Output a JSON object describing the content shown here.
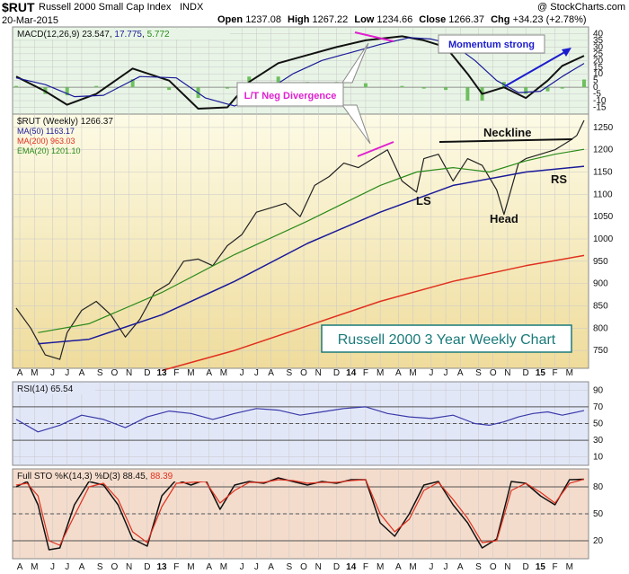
{
  "header": {
    "symbol": "$RUT",
    "name": "Russell 2000 Small Cap Index",
    "exchange": "INDX",
    "date": "20-Mar-2015",
    "credit": "@ StockCharts.com",
    "open_label": "Open",
    "open": "1237.08",
    "high_label": "High",
    "high": "1267.22",
    "low_label": "Low",
    "low": "1234.66",
    "close_label": "Close",
    "close": "1266.37",
    "chg_label": "Chg",
    "chg": "+34.23 (+2.78%)"
  },
  "colors": {
    "macd_bg": "#e8f5e6",
    "price_bg_top": "#fdfbe6",
    "price_bg_bottom": "#efdc9c",
    "rsi_bg": "#e2e7f8",
    "sto_bg": "#f4dccc",
    "grid": "#c8c8c8",
    "ma50": "#1a1a99",
    "ma200": "#e0301e",
    "ema20": "#2a8a1a",
    "hist": "#6fbf5f",
    "pink": "#e020d0",
    "blue_annot": "#1c1ccf",
    "teal": "#1a7a7a"
  },
  "chart_data": [
    {
      "type": "line",
      "panel": "MACD",
      "legend": "MACD(12,26,9)",
      "values": [
        "23.547",
        "17.775",
        "5.772"
      ],
      "ylim": [
        -20,
        45
      ],
      "yticks": [
        40,
        35,
        30,
        25,
        20,
        15,
        10,
        5,
        0,
        -5,
        -10,
        -15
      ],
      "annotations": [
        "Momentum strong",
        "L/T Neg Divergence"
      ],
      "series": [
        {
          "name": "MACD",
          "x": [
            0,
            8,
            14,
            22,
            32,
            42,
            50,
            58,
            64,
            72,
            80,
            88,
            96,
            106,
            112,
            118,
            124,
            128,
            134,
            140,
            146,
            150,
            156
          ],
          "values": [
            8,
            -3,
            -13,
            -5,
            14,
            5,
            -16,
            -15,
            4,
            18,
            24,
            30,
            35,
            38,
            35,
            30,
            10,
            -5,
            0,
            -8,
            5,
            16,
            23.5
          ]
        },
        {
          "name": "Signal",
          "x": [
            0,
            8,
            16,
            24,
            34,
            44,
            52,
            60,
            68,
            76,
            84,
            92,
            100,
            108,
            114,
            120,
            126,
            132,
            138,
            144,
            150,
            156
          ],
          "values": [
            7,
            2,
            -7,
            -6,
            8,
            7,
            -8,
            -14,
            -4,
            10,
            20,
            26,
            32,
            37,
            36,
            32,
            20,
            5,
            -4,
            -3,
            8,
            17.8
          ]
        },
        {
          "name": "Histogram",
          "x": [
            0,
            8,
            14,
            22,
            32,
            42,
            50,
            58,
            64,
            72,
            80,
            88,
            96,
            106,
            112,
            118,
            124,
            128,
            134,
            140,
            146,
            150,
            156
          ],
          "values": [
            1,
            -5,
            -6,
            1,
            6,
            -2,
            -8,
            -1,
            8,
            8,
            4,
            4,
            3,
            1,
            -1,
            -2,
            -10,
            -10,
            4,
            -5,
            -3,
            -1,
            5.8
          ]
        }
      ]
    },
    {
      "type": "line",
      "panel": "Price",
      "title": "Russell 2000 3 Year Weekly Chart",
      "legend": [
        "$RUT (Weekly) 1266.37",
        "MA(50) 1163.17",
        "MA(200) 963.03",
        "EMA(20) 1201.10"
      ],
      "ylim": [
        710,
        1280
      ],
      "yticks": [
        1250,
        1200,
        1150,
        1100,
        1050,
        1000,
        950,
        900,
        850,
        800,
        750
      ],
      "annotations": [
        "Neckline",
        "LS",
        "Head",
        "RS"
      ],
      "series": [
        {
          "name": "$RUT",
          "x": [
            0,
            4,
            8,
            12,
            14,
            18,
            22,
            26,
            30,
            34,
            38,
            42,
            46,
            50,
            54,
            58,
            62,
            66,
            70,
            74,
            78,
            82,
            86,
            90,
            94,
            98,
            102,
            106,
            110,
            112,
            116,
            120,
            124,
            128,
            132,
            134,
            138,
            140,
            144,
            148,
            152,
            154,
            156
          ],
          "values": [
            845,
            800,
            740,
            730,
            790,
            840,
            860,
            830,
            780,
            820,
            880,
            900,
            950,
            955,
            940,
            985,
            1010,
            1060,
            1070,
            1080,
            1050,
            1120,
            1140,
            1170,
            1160,
            1180,
            1200,
            1130,
            1105,
            1180,
            1190,
            1130,
            1180,
            1165,
            1110,
            1055,
            1170,
            1180,
            1190,
            1200,
            1220,
            1232,
            1266
          ]
        },
        {
          "name": "MA(50)",
          "x": [
            6,
            20,
            40,
            60,
            80,
            100,
            120,
            140,
            156
          ],
          "values": [
            765,
            775,
            830,
            905,
            990,
            1060,
            1120,
            1150,
            1163
          ]
        },
        {
          "name": "MA(200)",
          "x": [
            40,
            60,
            80,
            100,
            120,
            140,
            156
          ],
          "values": [
            705,
            750,
            805,
            860,
            905,
            940,
            963
          ]
        },
        {
          "name": "EMA(20)",
          "x": [
            6,
            20,
            40,
            60,
            80,
            100,
            110,
            120,
            130,
            140,
            148,
            156
          ],
          "values": [
            790,
            810,
            880,
            965,
            1040,
            1120,
            1150,
            1160,
            1150,
            1175,
            1190,
            1201
          ]
        }
      ]
    },
    {
      "type": "line",
      "panel": "RSI",
      "legend": "RSI(14)",
      "value": "65.54",
      "ylim": [
        0,
        100
      ],
      "yticks": [
        90,
        70,
        50,
        30,
        10
      ],
      "series": [
        {
          "name": "RSI(14)",
          "x": [
            0,
            6,
            12,
            18,
            24,
            30,
            36,
            42,
            48,
            54,
            60,
            66,
            72,
            78,
            84,
            90,
            96,
            102,
            108,
            114,
            120,
            126,
            130,
            134,
            138,
            142,
            146,
            150,
            156
          ],
          "values": [
            55,
            40,
            48,
            60,
            55,
            45,
            58,
            65,
            62,
            55,
            62,
            68,
            66,
            60,
            64,
            68,
            70,
            62,
            58,
            56,
            60,
            50,
            48,
            52,
            58,
            62,
            64,
            60,
            65.5
          ]
        }
      ]
    },
    {
      "type": "line",
      "panel": "Full STO",
      "legend": "Full STO %K(14,3) %D(3)",
      "values": [
        "88.45",
        "88.39"
      ],
      "ylim": [
        0,
        100
      ],
      "yticks": [
        80,
        50,
        20
      ],
      "series": [
        {
          "name": "%K",
          "x": [
            0,
            3,
            6,
            9,
            12,
            16,
            20,
            24,
            28,
            32,
            36,
            40,
            44,
            48,
            52,
            56,
            60,
            64,
            68,
            72,
            76,
            80,
            84,
            88,
            92,
            96,
            100,
            104,
            108,
            112,
            116,
            120,
            124,
            128,
            132,
            136,
            140,
            144,
            148,
            152,
            156
          ],
          "values": [
            80,
            86,
            60,
            10,
            12,
            60,
            86,
            82,
            60,
            22,
            14,
            70,
            88,
            82,
            88,
            55,
            82,
            86,
            84,
            90,
            86,
            82,
            86,
            84,
            88,
            88,
            40,
            25,
            50,
            82,
            86,
            60,
            40,
            12,
            22,
            86,
            84,
            70,
            60,
            88,
            88.5
          ]
        },
        {
          "name": "%D",
          "x": [
            0,
            3,
            6,
            9,
            12,
            16,
            20,
            24,
            28,
            32,
            36,
            40,
            44,
            48,
            52,
            56,
            60,
            64,
            68,
            72,
            76,
            80,
            84,
            88,
            92,
            96,
            100,
            104,
            108,
            112,
            116,
            120,
            124,
            128,
            132,
            136,
            140,
            144,
            148,
            152,
            156
          ],
          "values": [
            82,
            84,
            70,
            20,
            15,
            48,
            80,
            84,
            66,
            30,
            18,
            58,
            84,
            85,
            86,
            62,
            76,
            85,
            85,
            88,
            87,
            84,
            85,
            85,
            87,
            88,
            50,
            30,
            44,
            76,
            85,
            66,
            45,
            18,
            20,
            76,
            84,
            74,
            62,
            84,
            88.4
          ]
        }
      ]
    }
  ],
  "xaxis": {
    "labels": [
      "A",
      "M",
      "J",
      "J",
      "A",
      "S",
      "O",
      "N",
      "D",
      "13",
      "F",
      "M",
      "A",
      "M",
      "J",
      "J",
      "A",
      "S",
      "O",
      "N",
      "D",
      "14",
      "F",
      "M",
      "A",
      "M",
      "J",
      "J",
      "A",
      "S",
      "O",
      "N",
      "D",
      "15",
      "F",
      "M"
    ],
    "weeks": [
      1,
      5,
      10,
      14,
      18,
      23,
      27,
      31,
      36,
      40,
      44,
      48,
      53,
      57,
      62,
      66,
      70,
      75,
      79,
      83,
      88,
      92,
      96,
      100,
      105,
      109,
      114,
      118,
      122,
      127,
      131,
      135,
      140,
      144,
      148,
      152
    ]
  }
}
